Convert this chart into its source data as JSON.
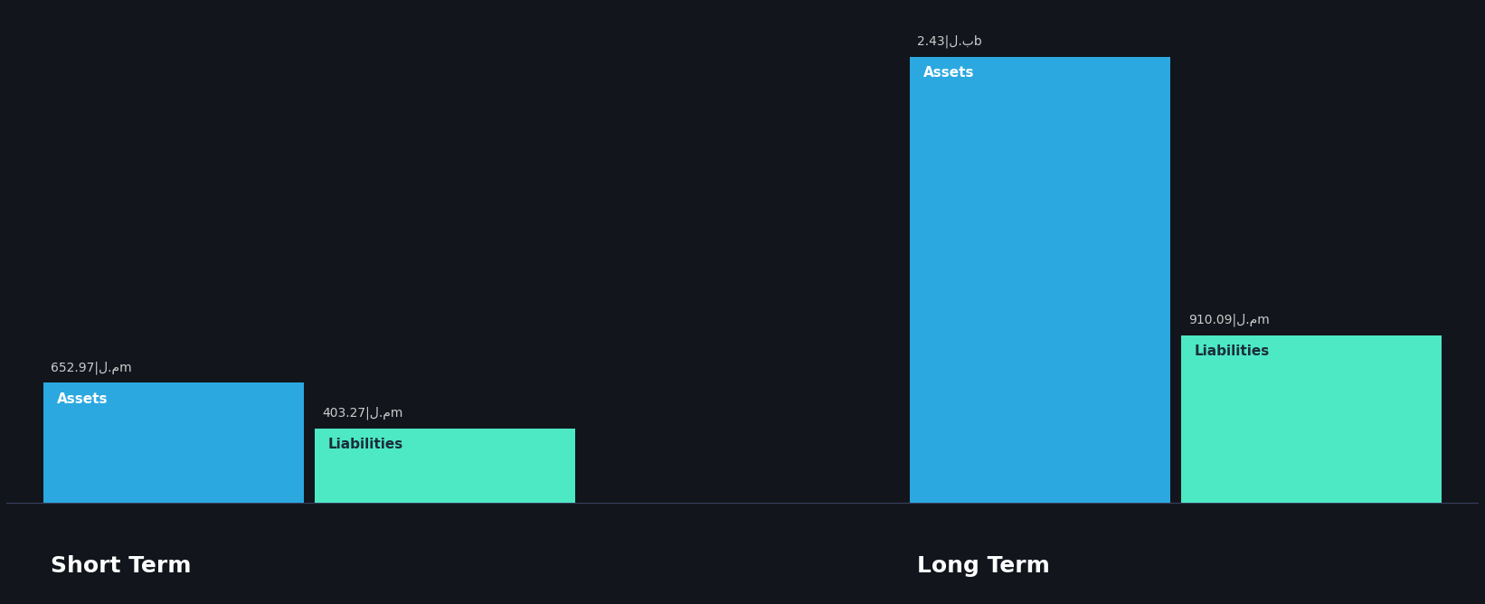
{
  "background_color": "#12161c",
  "groups": [
    "Short Term",
    "Long Term"
  ],
  "assets": [
    652.97,
    2430.0
  ],
  "liabilities": [
    403.27,
    910.09
  ],
  "asset_labels": [
    "652.97|ل.مm",
    "2.43|ل.بb"
  ],
  "liability_labels": [
    "403.27|ل.مm",
    "910.09|ل.مm"
  ],
  "asset_color": "#2ba8e0",
  "liability_color": "#4de8c4",
  "text_color_white": "#ffffff",
  "text_color_dark": "#1a2e3a",
  "group_label_color": "#ffffff",
  "value_label_color": "#cccccc",
  "ylim_max": 2600,
  "figsize": [
    16.42,
    6.68
  ],
  "dpi": 100
}
